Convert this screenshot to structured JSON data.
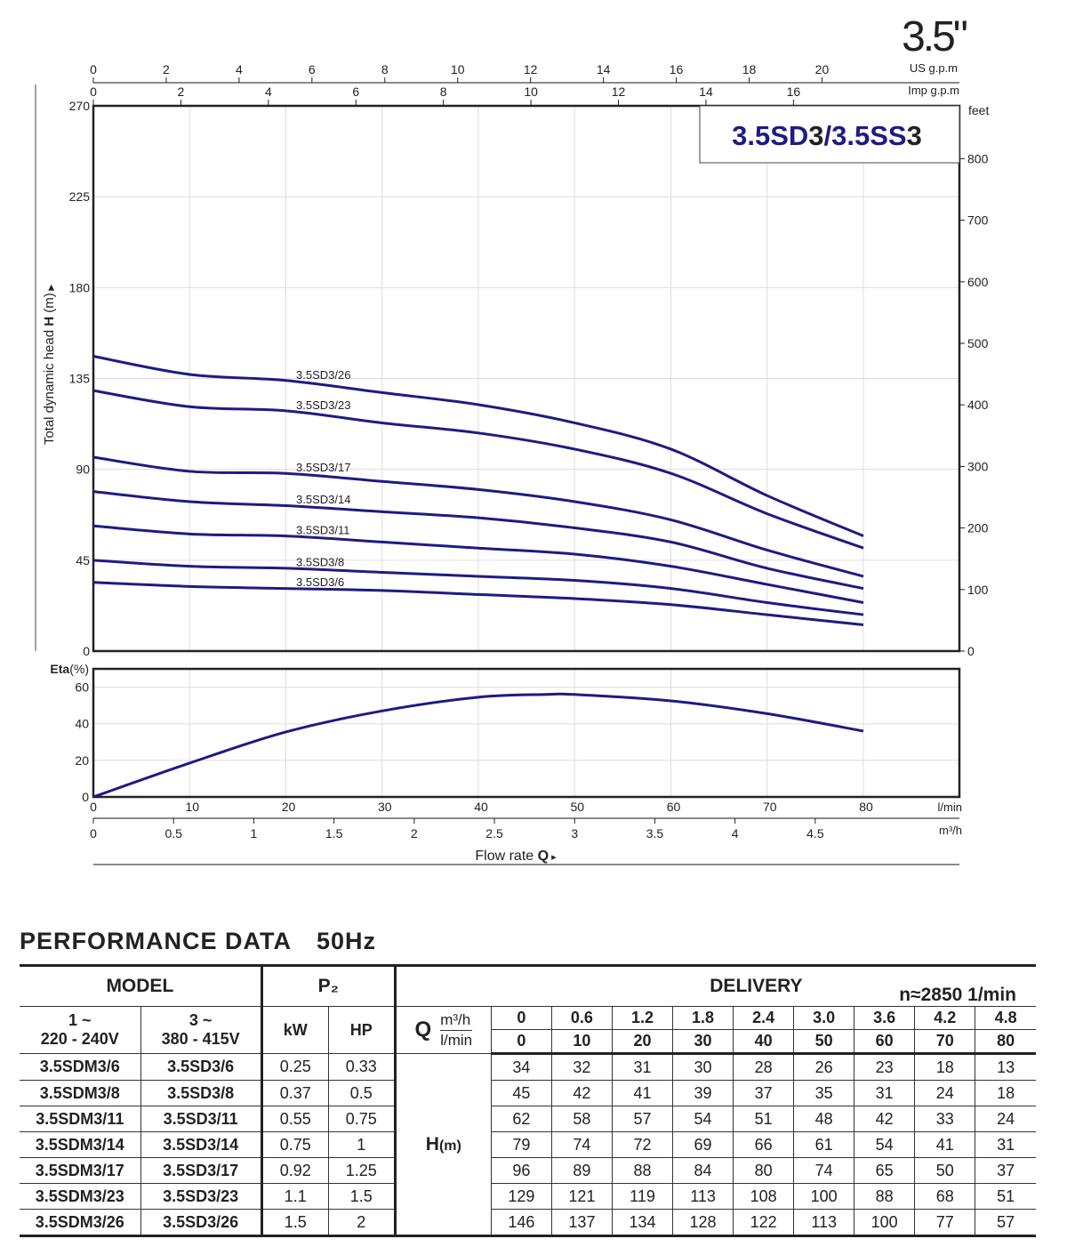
{
  "badge": "3.5\"",
  "chart_data": {
    "type": "line",
    "title_parts": [
      "3.5SD",
      "3",
      "/3.5SS",
      "3"
    ],
    "x": [
      0,
      10,
      20,
      30,
      40,
      50,
      60,
      70,
      80
    ],
    "xlabel": "Flow rate",
    "xlabel_symbol": "Q",
    "x_unit": "l/min",
    "xlim": [
      0,
      90
    ],
    "x_ticks": [
      0,
      10,
      20,
      30,
      40,
      50,
      60,
      70,
      80
    ],
    "x2_unit": "m³/h",
    "x2_ticks": [
      0,
      0.5,
      1,
      1.5,
      2,
      2.5,
      3,
      3.5,
      4,
      4.5
    ],
    "top_axis_us": {
      "unit": "US g.p.m",
      "ticks": [
        0,
        2,
        4,
        6,
        8,
        10,
        12,
        14,
        16,
        18,
        20
      ]
    },
    "top_axis_imp": {
      "unit": "Imp g.p.m",
      "ticks": [
        0,
        2,
        4,
        6,
        8,
        10,
        12,
        14,
        16
      ]
    },
    "ylabel": "Total dynamic head",
    "ylabel_symbol": "H",
    "ylabel_unit": "(m)",
    "ylim": [
      0,
      270
    ],
    "y_ticks": [
      0,
      45,
      90,
      135,
      180,
      225,
      270
    ],
    "y2_unit": "feet",
    "y2_ticks": [
      0,
      100,
      200,
      300,
      400,
      500,
      600,
      700,
      800
    ],
    "grid": true,
    "line_color": "#1c1c82",
    "series": [
      {
        "name": "3.5SD3/26",
        "values": [
          146,
          137,
          134,
          128,
          122,
          113,
          100,
          77,
          57
        ]
      },
      {
        "name": "3.5SD3/23",
        "values": [
          129,
          121,
          119,
          113,
          108,
          100,
          88,
          68,
          51
        ]
      },
      {
        "name": "3.5SD3/17",
        "values": [
          96,
          89,
          88,
          84,
          80,
          74,
          65,
          50,
          37
        ]
      },
      {
        "name": "3.5SD3/14",
        "values": [
          79,
          74,
          72,
          69,
          66,
          61,
          54,
          41,
          31
        ]
      },
      {
        "name": "3.5SD3/11",
        "values": [
          62,
          58,
          57,
          54,
          51,
          48,
          42,
          33,
          24
        ]
      },
      {
        "name": "3.5SD3/8",
        "values": [
          45,
          42,
          41,
          39,
          37,
          35,
          31,
          24,
          18
        ]
      },
      {
        "name": "3.5SD3/6",
        "values": [
          34,
          32,
          31,
          30,
          28,
          26,
          23,
          18,
          13
        ]
      }
    ],
    "efficiency": {
      "label": "Eta",
      "unit": "(%)",
      "ylim": [
        0,
        70
      ],
      "y_ticks": [
        0,
        20,
        40,
        60
      ],
      "x": [
        0,
        10,
        20,
        30,
        40,
        47,
        50,
        60,
        70,
        80
      ],
      "values": [
        0,
        18.5,
        35.5,
        47,
        54.5,
        56,
        56,
        52.5,
        45.5,
        36
      ]
    }
  },
  "performance": {
    "title": "PERFORMANCE  DATA",
    "freq": "50Hz",
    "model_label": "MODEL",
    "p2_label": "P₂",
    "delivery_label": "DELIVERY",
    "speed": "n≈2850 1/min",
    "col1": [
      "1 ~",
      "220 - 240V"
    ],
    "col2": [
      "3 ~",
      "380 - 415V"
    ],
    "kw": "kW",
    "hp": "HP",
    "q_label": "Q",
    "q_unit1": "m³/h",
    "q_unit2": "l/min",
    "h_label": "H",
    "h_unit": "(m)",
    "q_m3h": [
      "0",
      "0.6",
      "1.2",
      "1.8",
      "2.4",
      "3.0",
      "3.6",
      "4.2",
      "4.8"
    ],
    "q_lmin": [
      "0",
      "10",
      "20",
      "30",
      "40",
      "50",
      "60",
      "70",
      "80"
    ],
    "rows": [
      {
        "m1": "3.5SDM3/6",
        "m3": "3.5SD3/6",
        "kw": "0.25",
        "hp": "0.33",
        "h": [
          "34",
          "32",
          "31",
          "30",
          "28",
          "26",
          "23",
          "18",
          "13"
        ]
      },
      {
        "m1": "3.5SDM3/8",
        "m3": "3.5SD3/8",
        "kw": "0.37",
        "hp": "0.5",
        "h": [
          "45",
          "42",
          "41",
          "39",
          "37",
          "35",
          "31",
          "24",
          "18"
        ]
      },
      {
        "m1": "3.5SDM3/11",
        "m3": "3.5SD3/11",
        "kw": "0.55",
        "hp": "0.75",
        "h": [
          "62",
          "58",
          "57",
          "54",
          "51",
          "48",
          "42",
          "33",
          "24"
        ]
      },
      {
        "m1": "3.5SDM3/14",
        "m3": "3.5SD3/14",
        "kw": "0.75",
        "hp": "1",
        "h": [
          "79",
          "74",
          "72",
          "69",
          "66",
          "61",
          "54",
          "41",
          "31"
        ]
      },
      {
        "m1": "3.5SDM3/17",
        "m3": "3.5SD3/17",
        "kw": "0.92",
        "hp": "1.25",
        "h": [
          "96",
          "89",
          "88",
          "84",
          "80",
          "74",
          "65",
          "50",
          "37"
        ]
      },
      {
        "m1": "3.5SDM3/23",
        "m3": "3.5SD3/23",
        "kw": "1.1",
        "hp": "1.5",
        "h": [
          "129",
          "121",
          "119",
          "113",
          "108",
          "100",
          "88",
          "68",
          "51"
        ]
      },
      {
        "m1": "3.5SDM3/26",
        "m3": "3.5SD3/26",
        "kw": "1.5",
        "hp": "2",
        "h": [
          "146",
          "137",
          "134",
          "128",
          "122",
          "113",
          "100",
          "77",
          "57"
        ]
      }
    ]
  }
}
